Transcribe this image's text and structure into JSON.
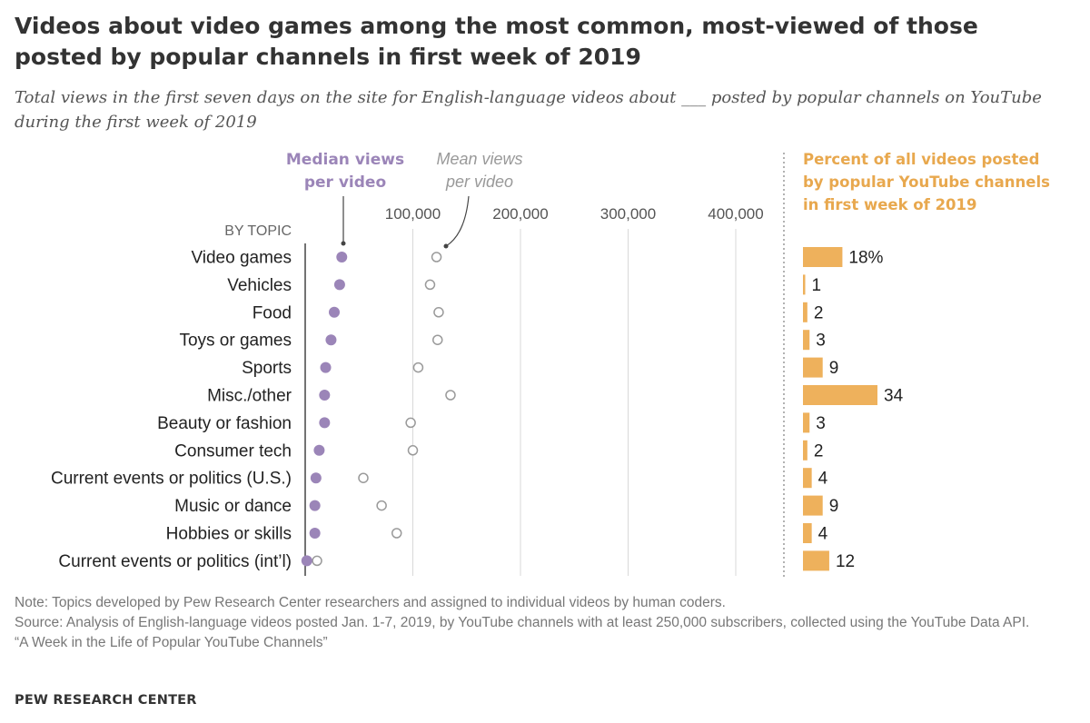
{
  "title": "Videos about video games among the most common, most-viewed of those posted by popular channels in first week of 2019",
  "subtitle": "Total views in the first seven days on the site for English-language videos about ___ posted by popular channels on YouTube during the first week of 2019",
  "legend": {
    "median_line1": "Median views",
    "median_line2": "per video",
    "mean_line1": "Mean views",
    "mean_line2": "per video",
    "percent_line1": "Percent of all videos posted",
    "percent_line2": "by popular YouTube channels",
    "percent_line3": "in first week of 2019"
  },
  "colors": {
    "median": "#9b85b8",
    "mean_stroke": "#9a9a9a",
    "bar": "#eeb15c",
    "percent_text": "#e8a84e",
    "grid": "#d9d9d9",
    "axis": "#444444"
  },
  "chart_data": [
    {
      "type": "scatter",
      "title": "",
      "group_label": "BY TOPIC",
      "xlim": [
        0,
        400000
      ],
      "x_ticks": [
        100000,
        200000,
        300000,
        400000
      ],
      "x_tick_labels": [
        "100,000",
        "200,000",
        "300,000",
        "400,000"
      ],
      "categories": [
        "Video games",
        "Vehicles",
        "Food",
        "Toys or games",
        "Sports",
        "Misc./other",
        "Beauty or fashion",
        "Consumer tech",
        "Current events or politics (U.S.)",
        "Music or dance",
        "Hobbies or skills",
        "Current events or politics (int’l)"
      ],
      "series": [
        {
          "name": "Median views per video",
          "values": [
            34000,
            32000,
            27000,
            24000,
            19000,
            18000,
            18000,
            13000,
            10000,
            9000,
            9000,
            1500
          ]
        },
        {
          "name": "Mean views per video",
          "values": [
            122000,
            116000,
            124000,
            123000,
            105000,
            135000,
            98000,
            100000,
            54000,
            71000,
            85000,
            11000
          ]
        }
      ]
    },
    {
      "type": "bar",
      "title": "Percent of all videos posted by popular YouTube channels in first week of 2019",
      "categories": [
        "Video games",
        "Vehicles",
        "Food",
        "Toys or games",
        "Sports",
        "Misc./other",
        "Beauty or fashion",
        "Consumer tech",
        "Current events or politics (U.S.)",
        "Music or dance",
        "Hobbies or skills",
        "Current events or politics (int’l)"
      ],
      "values": [
        18,
        1,
        2,
        3,
        9,
        34,
        3,
        2,
        4,
        9,
        4,
        12
      ],
      "value_labels": [
        "18%",
        "1",
        "2",
        "3",
        "9",
        "34",
        "3",
        "2",
        "4",
        "9",
        "4",
        "12"
      ]
    }
  ],
  "notes": {
    "note": "Note: Topics developed by Pew Research Center researchers and assigned to individual videos by human coders.",
    "source": "Source: Analysis of English-language videos posted Jan. 1-7, 2019, by YouTube channels with at least 250,000 subscribers, collected using the YouTube Data API.",
    "report": "“A Week in the Life of Popular YouTube Channels”"
  },
  "brand": "PEW RESEARCH CENTER"
}
